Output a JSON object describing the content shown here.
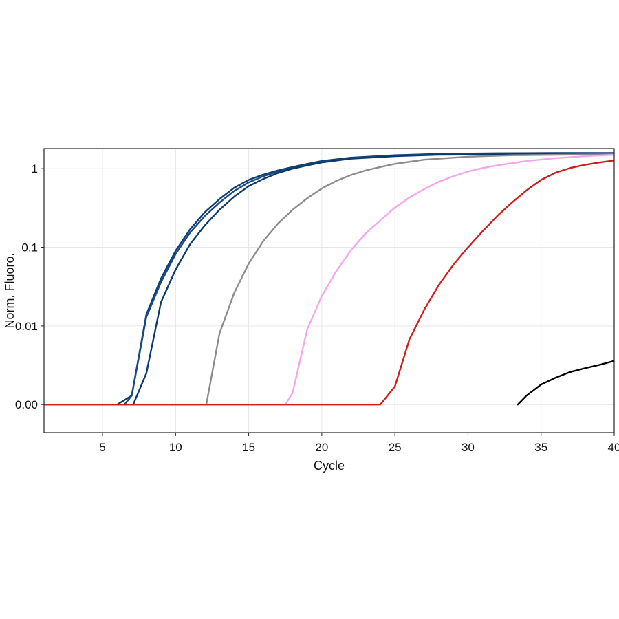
{
  "chart_data": {
    "type": "line",
    "title": "",
    "xlabel": "Cycle",
    "ylabel": "Norm. Fluoro.",
    "xlim": [
      1,
      40
    ],
    "x_ticks": [
      5,
      10,
      15,
      20,
      25,
      30,
      35,
      40
    ],
    "y_scale": "log",
    "ylim": [
      0.00044,
      1.8
    ],
    "y_ticks": [
      {
        "value": 0.001,
        "label": "0.00"
      },
      {
        "value": 0.01,
        "label": "0.01"
      },
      {
        "value": 0.1,
        "label": "0.1"
      },
      {
        "value": 1,
        "label": "1"
      }
    ],
    "grid": true,
    "series": [
      {
        "color": "#0d3d73",
        "points": [
          [
            1,
            0.001
          ],
          [
            6,
            0.001
          ],
          [
            7,
            0.0013
          ],
          [
            8,
            0.014
          ],
          [
            9,
            0.04
          ],
          [
            10,
            0.09
          ],
          [
            11,
            0.17
          ],
          [
            12,
            0.28
          ],
          [
            13,
            0.41
          ],
          [
            14,
            0.57
          ],
          [
            15,
            0.72
          ],
          [
            16,
            0.84
          ],
          [
            17,
            0.95
          ],
          [
            18,
            1.05
          ],
          [
            19,
            1.15
          ],
          [
            20,
            1.25
          ],
          [
            22,
            1.38
          ],
          [
            25,
            1.48
          ],
          [
            28,
            1.54
          ],
          [
            32,
            1.57
          ],
          [
            36,
            1.58
          ],
          [
            40,
            1.58
          ]
        ]
      },
      {
        "color": "#1a4a80",
        "points": [
          [
            1,
            0.001
          ],
          [
            6.5,
            0.001
          ],
          [
            7,
            0.0013
          ],
          [
            8,
            0.013
          ],
          [
            9,
            0.036
          ],
          [
            10,
            0.082
          ],
          [
            11,
            0.155
          ],
          [
            12,
            0.25
          ],
          [
            13,
            0.37
          ],
          [
            14,
            0.52
          ],
          [
            15,
            0.67
          ],
          [
            16,
            0.8
          ],
          [
            17,
            0.92
          ],
          [
            18,
            1.02
          ],
          [
            19,
            1.12
          ],
          [
            20,
            1.22
          ],
          [
            22,
            1.36
          ],
          [
            25,
            1.46
          ],
          [
            28,
            1.52
          ],
          [
            32,
            1.55
          ],
          [
            36,
            1.56
          ],
          [
            40,
            1.56
          ]
        ]
      },
      {
        "color": "#0b3a6b",
        "points": [
          [
            1,
            0.001
          ],
          [
            7.1,
            0.001
          ],
          [
            8,
            0.0025
          ],
          [
            9,
            0.02
          ],
          [
            10,
            0.052
          ],
          [
            11,
            0.11
          ],
          [
            12,
            0.19
          ],
          [
            13,
            0.3
          ],
          [
            14,
            0.44
          ],
          [
            15,
            0.6
          ],
          [
            16,
            0.74
          ],
          [
            17,
            0.88
          ],
          [
            18,
            1.0
          ],
          [
            19,
            1.1
          ],
          [
            20,
            1.2
          ],
          [
            22,
            1.34
          ],
          [
            25,
            1.44
          ],
          [
            28,
            1.5
          ],
          [
            32,
            1.52
          ],
          [
            36,
            1.52
          ],
          [
            40,
            1.52
          ]
        ]
      },
      {
        "color": "#8c8c8c",
        "points": [
          [
            1,
            0.001
          ],
          [
            12.1,
            0.001
          ],
          [
            13,
            0.008
          ],
          [
            14,
            0.026
          ],
          [
            15,
            0.062
          ],
          [
            16,
            0.12
          ],
          [
            17,
            0.2
          ],
          [
            18,
            0.3
          ],
          [
            19,
            0.42
          ],
          [
            20,
            0.56
          ],
          [
            21,
            0.7
          ],
          [
            22,
            0.83
          ],
          [
            23,
            0.95
          ],
          [
            24,
            1.05
          ],
          [
            25,
            1.15
          ],
          [
            27,
            1.3
          ],
          [
            30,
            1.42
          ],
          [
            33,
            1.48
          ],
          [
            36,
            1.5
          ],
          [
            40,
            1.52
          ]
        ]
      },
      {
        "color": "#f2a6ee",
        "points": [
          [
            1,
            0.001
          ],
          [
            17.5,
            0.001
          ],
          [
            18,
            0.0014
          ],
          [
            19,
            0.009
          ],
          [
            20,
            0.024
          ],
          [
            21,
            0.05
          ],
          [
            22,
            0.092
          ],
          [
            23,
            0.15
          ],
          [
            24,
            0.22
          ],
          [
            25,
            0.32
          ],
          [
            26,
            0.43
          ],
          [
            27,
            0.55
          ],
          [
            28,
            0.68
          ],
          [
            29,
            0.8
          ],
          [
            30,
            0.92
          ],
          [
            31,
            1.02
          ],
          [
            32,
            1.1
          ],
          [
            34,
            1.25
          ],
          [
            36,
            1.36
          ],
          [
            38,
            1.44
          ],
          [
            40,
            1.5
          ]
        ]
      },
      {
        "color": "#d01c1c",
        "points": [
          [
            1,
            0.001
          ],
          [
            24,
            0.001
          ],
          [
            25,
            0.0017
          ],
          [
            26,
            0.0068
          ],
          [
            27,
            0.016
          ],
          [
            28,
            0.033
          ],
          [
            29,
            0.06
          ],
          [
            30,
            0.1
          ],
          [
            31,
            0.16
          ],
          [
            32,
            0.25
          ],
          [
            33,
            0.37
          ],
          [
            34,
            0.53
          ],
          [
            35,
            0.72
          ],
          [
            36,
            0.89
          ],
          [
            37,
            1.02
          ],
          [
            38,
            1.12
          ],
          [
            39,
            1.2
          ],
          [
            40,
            1.27
          ]
        ]
      },
      {
        "color": "#000000",
        "points": [
          [
            33.4,
            0.001
          ],
          [
            34,
            0.0013
          ],
          [
            35,
            0.0018
          ],
          [
            36,
            0.0022
          ],
          [
            37,
            0.0026
          ],
          [
            38,
            0.0029
          ],
          [
            39,
            0.0032
          ],
          [
            40,
            0.0036
          ]
        ]
      }
    ]
  }
}
